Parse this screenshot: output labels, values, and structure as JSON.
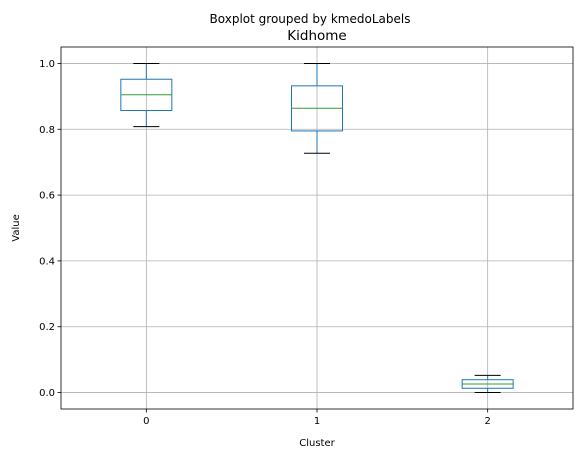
{
  "chart_data": {
    "type": "boxplot",
    "suptitle": "Boxplot grouped by kmedoLabels",
    "title": "Kidhome",
    "xlabel": "Cluster",
    "ylabel": "Value",
    "categories": [
      "0",
      "1",
      "2"
    ],
    "ylim": [
      -0.05,
      1.05
    ],
    "yticks": [
      0.0,
      0.2,
      0.4,
      0.6,
      0.8,
      1.0
    ],
    "ytick_labels": [
      "0.0",
      "0.2",
      "0.4",
      "0.6",
      "0.8",
      "1.0"
    ],
    "grid": true,
    "boxes": [
      {
        "category": "0",
        "whisker_low": 0.808,
        "q1": 0.857,
        "median": 0.905,
        "q3": 0.952,
        "whisker_high": 1.0
      },
      {
        "category": "1",
        "whisker_low": 0.727,
        "q1": 0.795,
        "median": 0.864,
        "q3": 0.932,
        "whisker_high": 1.0
      },
      {
        "category": "2",
        "whisker_low": 0.0,
        "q1": 0.013,
        "median": 0.026,
        "q3": 0.039,
        "whisker_high": 0.052
      }
    ],
    "colors": {
      "box": "#1f77b4",
      "median": "#2ca02c",
      "whisker": "#1f77b4",
      "cap": "#000000",
      "grid": "#b0b0b0"
    }
  }
}
